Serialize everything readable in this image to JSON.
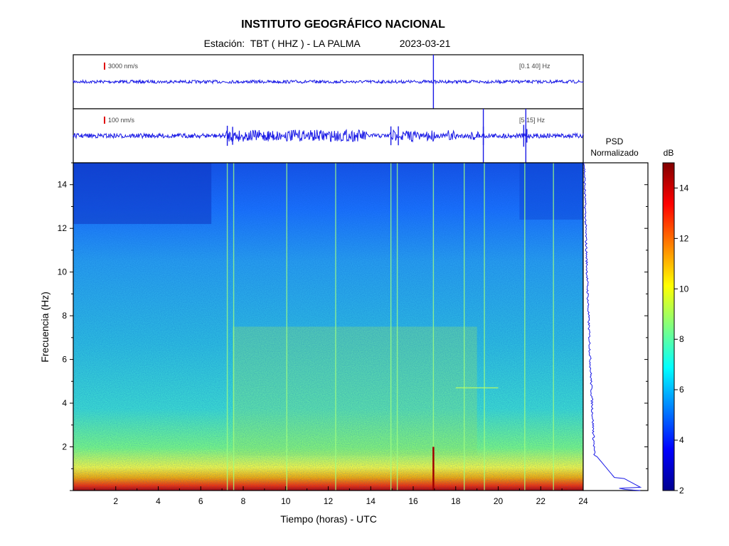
{
  "header": {
    "title": "INSTITUTO GEOGRÁFICO NACIONAL",
    "station": "Estación:  TBT ( HHZ ) - LA PALMA",
    "date": "2023-03-21"
  },
  "chart_data": [
    {
      "type": "line",
      "panel": "seismogram-broadband",
      "scale_label": "3000 nm/s",
      "filter_label": "[0.1 40] Hz",
      "x_unit": "horas UTC",
      "xlim": [
        0,
        24
      ],
      "events_hours": [
        16.95
      ],
      "color": "#1a1ae6"
    },
    {
      "type": "line",
      "panel": "seismogram-filtered",
      "scale_label": "100 nm/s",
      "filter_label": "[5 15] Hz",
      "x_unit": "horas UTC",
      "xlim": [
        0,
        24
      ],
      "noise_bursts_hours": [
        [
          7.2,
          7.9
        ],
        [
          8.0,
          9.8
        ],
        [
          10.0,
          10.9
        ],
        [
          11.0,
          13.8
        ],
        [
          14.9,
          15.2
        ],
        [
          15.4,
          16.3
        ],
        [
          16.6,
          17.0
        ],
        [
          17.6,
          18.0
        ],
        [
          18.7,
          19.1
        ]
      ],
      "spikes_hours": [
        7.25,
        7.5,
        14.95,
        15.3,
        19.3,
        21.2,
        21.35
      ],
      "color": "#1a1ae6"
    },
    {
      "type": "heatmap",
      "panel": "spectrogram",
      "xlabel": "Tiempo (horas) - UTC",
      "ylabel": "Frecuencia  (Hz)",
      "xlim": [
        0,
        24
      ],
      "ylim": [
        0,
        15
      ],
      "x_ticks": [
        2,
        4,
        6,
        8,
        10,
        12,
        14,
        16,
        18,
        20,
        22,
        24
      ],
      "y_ticks": [
        2,
        4,
        6,
        8,
        10,
        12,
        14
      ],
      "colorscale": [
        "#00008f",
        "#0000ff",
        "#0080ff",
        "#00ffff",
        "#80ff80",
        "#ffff00",
        "#ff8000",
        "#ff0000",
        "#800000"
      ],
      "vertical_lines_hours": [
        7.25,
        7.55,
        10.05,
        12.35,
        14.95,
        15.25,
        16.95,
        18.4,
        19.35,
        21.25,
        22.6
      ]
    },
    {
      "type": "line",
      "panel": "psd",
      "title_line1": "PSD",
      "title_line2": "Normalizado",
      "ylim": [
        0,
        15
      ],
      "color": "#1a1ae6"
    },
    {
      "type": "colorbar",
      "panel": "colorbar",
      "label": "dB",
      "range": [
        2,
        15
      ],
      "ticks": [
        2,
        4,
        6,
        8,
        10,
        12,
        14
      ],
      "colorscale": [
        "#00008f",
        "#0000ff",
        "#0080ff",
        "#00ffff",
        "#80ff80",
        "#ffff00",
        "#ff8000",
        "#ff0000",
        "#800000"
      ]
    }
  ]
}
